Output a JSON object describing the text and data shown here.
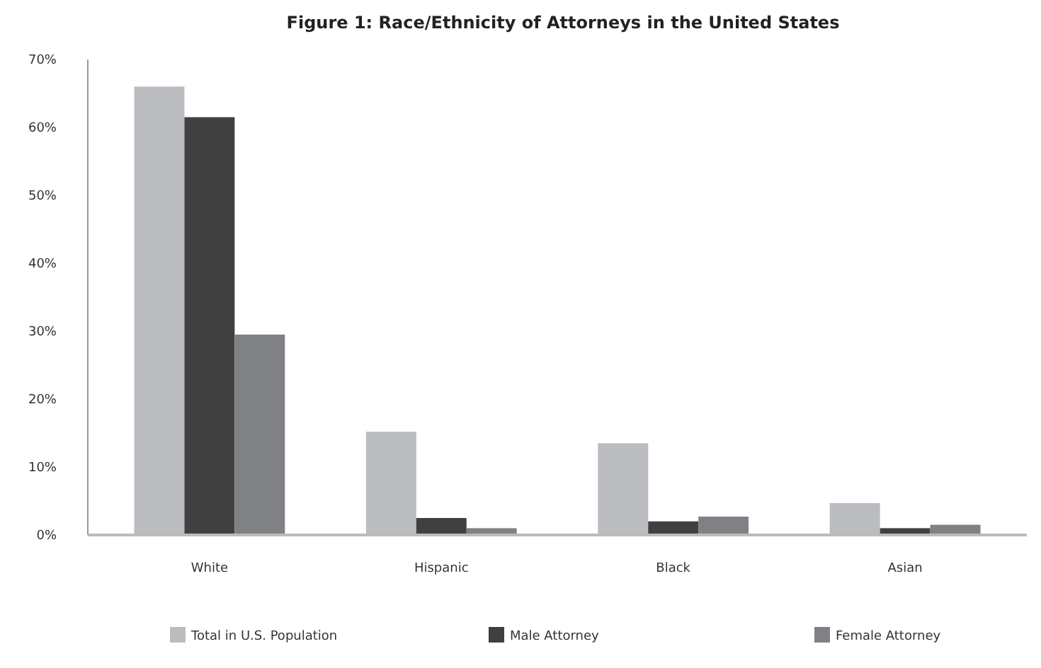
{
  "chart_data": {
    "type": "bar",
    "title": "Figure 1:  Race/Ethnicity of Attorneys in the United States",
    "categories": [
      "White",
      "Hispanic",
      "Black",
      "Asian"
    ],
    "series": [
      {
        "name": "Total in U.S. Population",
        "color": "#bbbcc0",
        "values": [
          66,
          15.2,
          13.5,
          4.7
        ]
      },
      {
        "name": "Male Attorney",
        "color": "#404040",
        "values": [
          61.5,
          2.5,
          2,
          1
        ]
      },
      {
        "name": "Female Attorney",
        "color": "#808184",
        "values": [
          29.5,
          1,
          2.7,
          1.5
        ]
      }
    ],
    "ylim": [
      0,
      70
    ],
    "yticks": [
      {
        "value": 0,
        "label": "0%"
      },
      {
        "value": 10,
        "label": "10%"
      },
      {
        "value": 20,
        "label": "20%"
      },
      {
        "value": 30,
        "label": "30%"
      },
      {
        "value": 40,
        "label": "40%"
      },
      {
        "value": 50,
        "label": "50%"
      },
      {
        "value": 60,
        "label": "60%"
      },
      {
        "value": 70,
        "label": "70%"
      }
    ],
    "grid": false,
    "legend": "bottom"
  }
}
